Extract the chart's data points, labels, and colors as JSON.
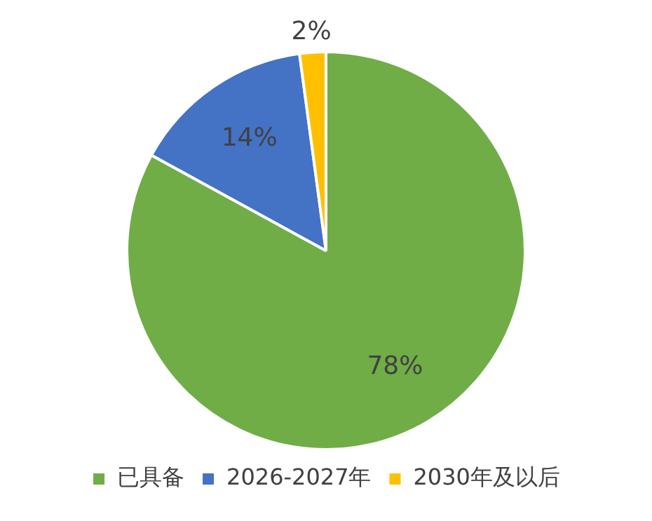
{
  "chart_data": {
    "type": "pie",
    "categories": [
      "已具备",
      "2026-2027年",
      "2030年及以后"
    ],
    "values": [
      78,
      14,
      2
    ],
    "value_labels": [
      "78%",
      "14%",
      "2%"
    ],
    "colors": [
      "#70ad47",
      "#4472c4",
      "#ffc000"
    ],
    "legend": "bottom"
  }
}
